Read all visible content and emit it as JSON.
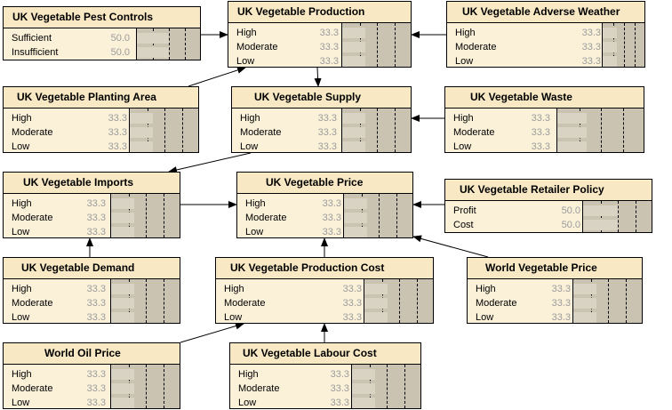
{
  "nodes": [
    {
      "id": "pest",
      "title": "UK Vegetable Pest Controls",
      "states": [
        {
          "label": "Sufficient",
          "value": "50.0",
          "fraction": 0.5
        },
        {
          "label": "Insufficient",
          "value": "50.0",
          "fraction": 0.5
        }
      ]
    },
    {
      "id": "production",
      "title": "UK Vegetable Production",
      "states": [
        {
          "label": "High",
          "value": "33.3",
          "fraction": 0.333
        },
        {
          "label": "Moderate",
          "value": "33.3",
          "fraction": 0.333
        },
        {
          "label": "Low",
          "value": "33.3",
          "fraction": 0.333
        }
      ]
    },
    {
      "id": "weather",
      "title": "UK Vegetable Adverse Weather",
      "states": [
        {
          "label": "High",
          "value": "33.3",
          "fraction": 0.333
        },
        {
          "label": "Moderate",
          "value": "33.3",
          "fraction": 0.333
        },
        {
          "label": "Low",
          "value": "33.3",
          "fraction": 0.333
        }
      ]
    },
    {
      "id": "planting",
      "title": "UK Vegetable Planting Area",
      "states": [
        {
          "label": "High",
          "value": "33.3",
          "fraction": 0.333
        },
        {
          "label": "Moderate",
          "value": "33.3",
          "fraction": 0.333
        },
        {
          "label": "Low",
          "value": "33.3",
          "fraction": 0.333
        }
      ]
    },
    {
      "id": "supply",
      "title": "UK Vegetable Supply",
      "states": [
        {
          "label": "High",
          "value": "33.3",
          "fraction": 0.333
        },
        {
          "label": "Moderate",
          "value": "33.3",
          "fraction": 0.333
        },
        {
          "label": "Low",
          "value": "33.3",
          "fraction": 0.333
        }
      ]
    },
    {
      "id": "waste",
      "title": "UK Vegetable Waste",
      "states": [
        {
          "label": "High",
          "value": "33.3",
          "fraction": 0.333
        },
        {
          "label": "Moderate",
          "value": "33.3",
          "fraction": 0.333
        },
        {
          "label": "Low",
          "value": "33.3",
          "fraction": 0.333
        }
      ]
    },
    {
      "id": "imports",
      "title": "UK Vegetable Imports",
      "states": [
        {
          "label": "High",
          "value": "33.3",
          "fraction": 0.333
        },
        {
          "label": "Moderate",
          "value": "33.3",
          "fraction": 0.333
        },
        {
          "label": "Low",
          "value": "33.3",
          "fraction": 0.333
        }
      ]
    },
    {
      "id": "price",
      "title": "UK Vegetable Price",
      "states": [
        {
          "label": "High",
          "value": "33.3",
          "fraction": 0.333
        },
        {
          "label": "Moderate",
          "value": "33.3",
          "fraction": 0.333
        },
        {
          "label": "Low",
          "value": "33.3",
          "fraction": 0.333
        }
      ]
    },
    {
      "id": "retailer",
      "title": "UK Vegetable Retailer Policy",
      "states": [
        {
          "label": "Profit",
          "value": "50.0",
          "fraction": 0.5
        },
        {
          "label": "Cost",
          "value": "50.0",
          "fraction": 0.5
        }
      ]
    },
    {
      "id": "demand",
      "title": "UK Vegetable Demand",
      "states": [
        {
          "label": "High",
          "value": "33.3",
          "fraction": 0.333
        },
        {
          "label": "Moderate",
          "value": "33.3",
          "fraction": 0.333
        },
        {
          "label": "Low",
          "value": "33.3",
          "fraction": 0.333
        }
      ]
    },
    {
      "id": "prodcost",
      "title": "UK Vegetable Production Cost",
      "states": [
        {
          "label": "High",
          "value": "33.3",
          "fraction": 0.333
        },
        {
          "label": "Moderate",
          "value": "33.3",
          "fraction": 0.333
        },
        {
          "label": "Low",
          "value": "33.3",
          "fraction": 0.333
        }
      ]
    },
    {
      "id": "worldveg",
      "title": "World Vegetable Price",
      "states": [
        {
          "label": "High",
          "value": "33.3",
          "fraction": 0.333
        },
        {
          "label": "Moderate",
          "value": "33.3",
          "fraction": 0.333
        },
        {
          "label": "Low",
          "value": "33.3",
          "fraction": 0.333
        }
      ]
    },
    {
      "id": "oil",
      "title": "World Oil Price",
      "states": [
        {
          "label": "High",
          "value": "33.3",
          "fraction": 0.333
        },
        {
          "label": "Moderate",
          "value": "33.3",
          "fraction": 0.333
        },
        {
          "label": "Low",
          "value": "33.3",
          "fraction": 0.333
        }
      ]
    },
    {
      "id": "labour",
      "title": "UK Vegetable Labour Cost",
      "states": [
        {
          "label": "High",
          "value": "33.3",
          "fraction": 0.333
        },
        {
          "label": "Moderate",
          "value": "33.3",
          "fraction": 0.333
        },
        {
          "label": "Low",
          "value": "33.3",
          "fraction": 0.333
        }
      ]
    }
  ],
  "links": [
    {
      "from": "pest",
      "to": "production"
    },
    {
      "from": "weather",
      "to": "production"
    },
    {
      "from": "planting",
      "to": "production"
    },
    {
      "from": "production",
      "to": "supply"
    },
    {
      "from": "waste",
      "to": "supply"
    },
    {
      "from": "supply",
      "to": "imports"
    },
    {
      "from": "imports",
      "to": "price"
    },
    {
      "from": "retailer",
      "to": "price"
    },
    {
      "from": "demand",
      "to": "imports"
    },
    {
      "from": "prodcost",
      "to": "price"
    },
    {
      "from": "worldveg",
      "to": "price"
    },
    {
      "from": "oil",
      "to": "prodcost"
    },
    {
      "from": "labour",
      "to": "prodcost"
    }
  ]
}
